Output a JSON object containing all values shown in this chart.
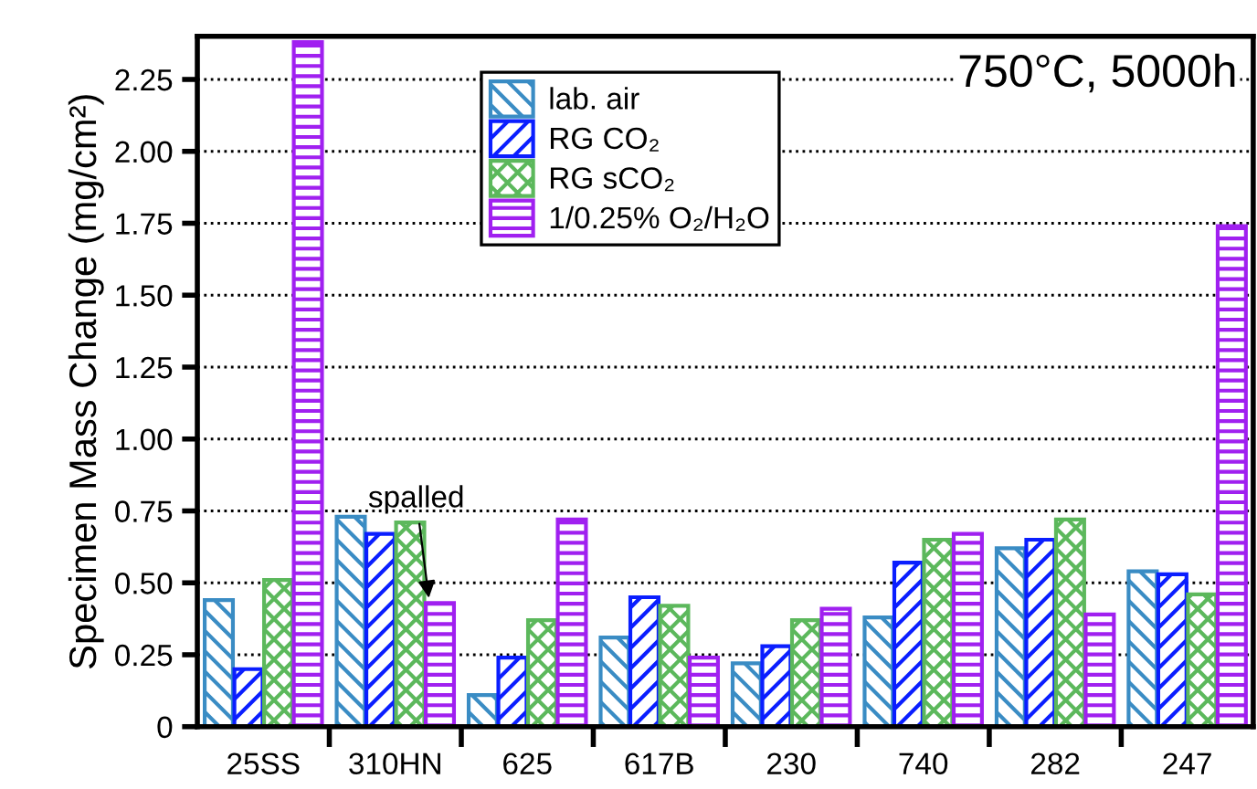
{
  "chart_data": {
    "type": "bar",
    "ylabel": "Specimen Mass Change (mg/cm²)",
    "categories": [
      "25SS",
      "310HN",
      "625",
      "617B",
      "230",
      "740",
      "282",
      "247"
    ],
    "series": [
      {
        "name": "lab. air",
        "color": "#3a8cc4",
        "values": [
          0.44,
          0.73,
          0.11,
          0.31,
          0.22,
          0.38,
          0.62,
          0.54
        ]
      },
      {
        "name": "RG CO₂",
        "color": "#0a1eff",
        "values": [
          0.2,
          0.67,
          0.24,
          0.45,
          0.28,
          0.57,
          0.65,
          0.53
        ]
      },
      {
        "name": "RG sCO₂",
        "color": "#5cb85c",
        "values": [
          0.51,
          0.71,
          0.37,
          0.42,
          0.37,
          0.65,
          0.72,
          0.46
        ]
      },
      {
        "name": "1/0.25% O₂/H₂O",
        "color": "#a020f0",
        "values": [
          2.38,
          0.43,
          0.72,
          0.24,
          0.41,
          0.67,
          0.39,
          1.74
        ]
      }
    ],
    "ylim": [
      0,
      2.4
    ],
    "yticks": [
      {
        "value": 0,
        "label": "0"
      },
      {
        "value": 0.25,
        "label": "0.25"
      },
      {
        "value": 0.5,
        "label": "0.50"
      },
      {
        "value": 0.75,
        "label": "0.75"
      },
      {
        "value": 1.0,
        "label": "1.00"
      },
      {
        "value": 1.25,
        "label": "1.25"
      },
      {
        "value": 1.5,
        "label": "1.50"
      },
      {
        "value": 1.75,
        "label": "1.75"
      },
      {
        "value": 2.0,
        "label": "2.00"
      },
      {
        "value": 2.25,
        "label": "2.25"
      }
    ],
    "grid": "y",
    "legend": "top",
    "annotations": [
      "750°C, 5000h",
      {
        "text": "spalled",
        "x": "310HN",
        "y": 0.43
      }
    ]
  }
}
